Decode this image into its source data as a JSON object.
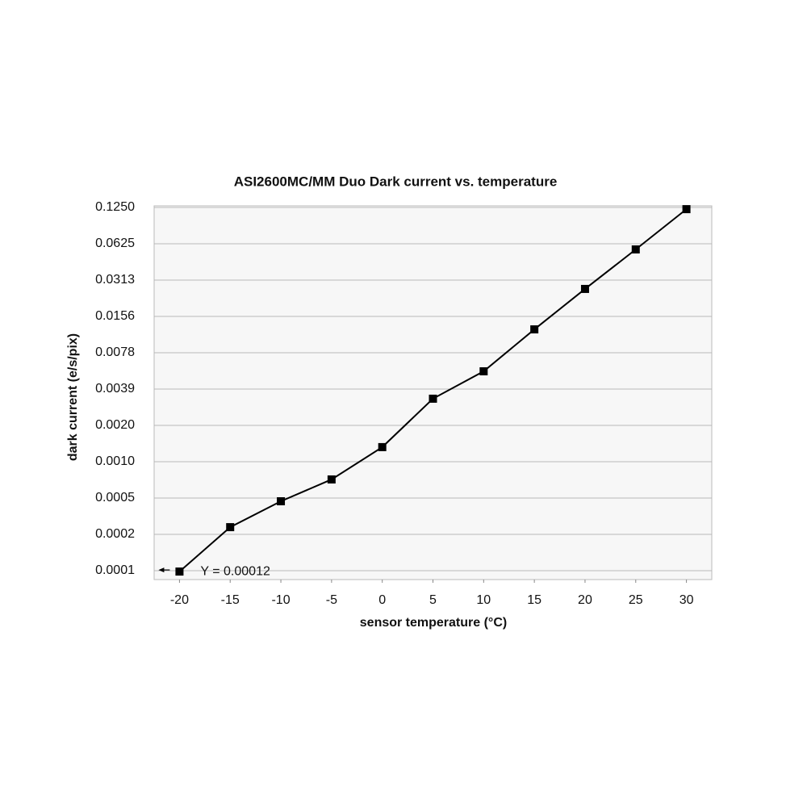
{
  "chart_data": {
    "type": "line",
    "title": "ASI2600MC/MM Duo Dark current vs. temperature",
    "x_label": "sensor temperature (°C)",
    "y_label": "dark current (e/s/pix)",
    "x": [
      -20,
      -15,
      -10,
      -5,
      0,
      5,
      10,
      15,
      20,
      25,
      30
    ],
    "series": [
      {
        "name": "dark current",
        "color": "#000000",
        "values": [
          0.00012,
          0.00028,
          0.000459,
          0.000696,
          0.00129,
          0.00325,
          0.00548,
          0.0122,
          0.0264,
          0.0561,
          0.121
        ]
      }
    ],
    "annotation": "Y = 0.00012",
    "xlim": [
      -22.5,
      32.5
    ],
    "xticks": [
      -20,
      -15,
      -10,
      -5,
      0,
      5,
      10,
      15,
      20,
      25,
      30
    ],
    "ylim": [
      0.000103,
      0.125
    ],
    "y_scale": "log",
    "yticks": [
      {
        "value": 0.0001220703125,
        "label": "0.0001"
      },
      {
        "value": 0.000244140625,
        "label": "0.0002"
      },
      {
        "value": 0.00048828125,
        "label": "0.0005"
      },
      {
        "value": 0.0009765625,
        "label": "0.0010"
      },
      {
        "value": 0.001953125,
        "label": "0.0020"
      },
      {
        "value": 0.00390625,
        "label": "0.0039"
      },
      {
        "value": 0.0078125,
        "label": "0.0078"
      },
      {
        "value": 0.015625,
        "label": "0.0156"
      },
      {
        "value": 0.03125,
        "label": "0.0313"
      },
      {
        "value": 0.0625,
        "label": "0.0625"
      },
      {
        "value": 0.125,
        "label": "0.1250"
      }
    ],
    "grid": true,
    "plot_background": "#f7f7f7"
  }
}
